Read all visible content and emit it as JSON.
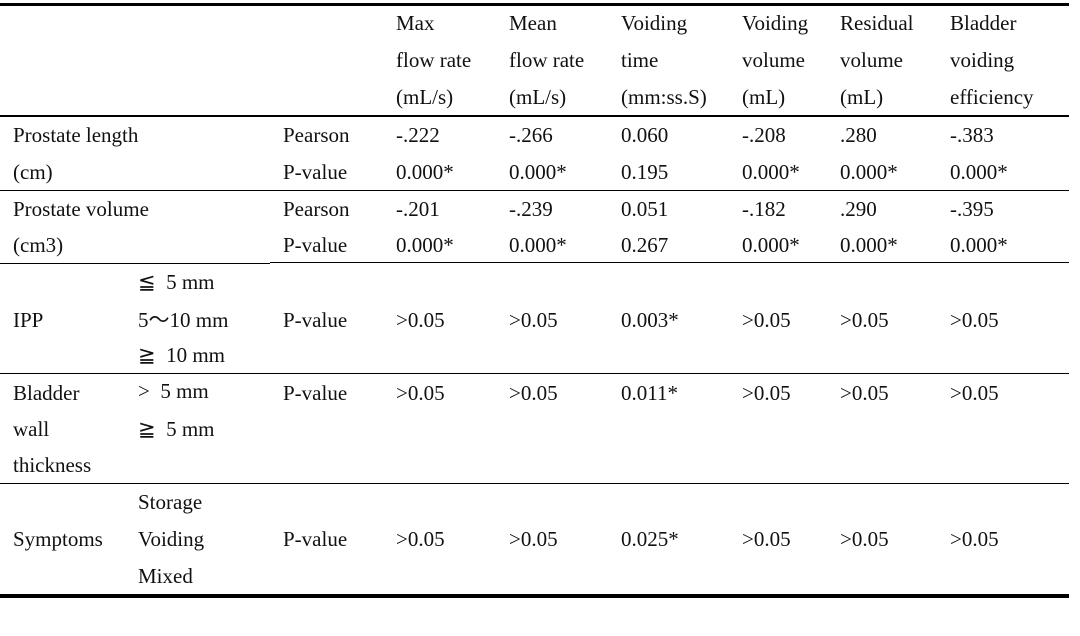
{
  "header": {
    "columns": [
      [
        "Max",
        "flow rate",
        "(mL/s)"
      ],
      [
        "Mean",
        "flow rate",
        "(mL/s)"
      ],
      [
        "Voiding",
        "time",
        "(mm:ss.S)"
      ],
      [
        "Voiding",
        "volume",
        "(mL)"
      ],
      [
        "Residual",
        "volume",
        "(mL)"
      ],
      [
        "Bladder",
        "voiding",
        "efficiency"
      ]
    ]
  },
  "rows": [
    {
      "label": [
        "Prostate length",
        "(cm)"
      ],
      "sub": [],
      "stats": [
        {
          "name": "Pearson",
          "values": [
            "-.222",
            "-.266",
            "0.060",
            "-.208",
            ".280",
            "-.383"
          ]
        },
        {
          "name": "P-value",
          "values": [
            "0.000*",
            "0.000*",
            "0.195",
            "0.000*",
            "0.000*",
            "0.000*"
          ]
        }
      ]
    },
    {
      "label": [
        "Prostate volume",
        "(cm3)"
      ],
      "sub": [],
      "stats": [
        {
          "name": "Pearson",
          "values": [
            "-.201",
            "-.239",
            "0.051",
            "-.182",
            ".290",
            "-.395"
          ]
        },
        {
          "name": "P-value",
          "values": [
            "0.000*",
            "0.000*",
            "0.267",
            "0.000*",
            "0.000*",
            "0.000*"
          ]
        }
      ]
    },
    {
      "label": [
        "IPP"
      ],
      "sub": [
        "≦  5 mm",
        "5～10 mm",
        "≧  10 mm"
      ],
      "stats": [
        {
          "name": "P-value",
          "values": [
            ">0.05",
            ">0.05",
            "0.003*",
            ">0.05",
            ">0.05",
            ">0.05"
          ]
        }
      ]
    },
    {
      "label": [
        "Bladder",
        "wall",
        "thickness"
      ],
      "sub": [
        ">  5 mm",
        "≧  5 mm"
      ],
      "stats": [
        {
          "name": "P-value",
          "values": [
            ">0.05",
            ">0.05",
            "0.011*",
            ">0.05",
            ">0.05",
            ">0.05"
          ]
        }
      ]
    },
    {
      "label": [
        "Symptoms"
      ],
      "sub": [
        "Storage",
        "Voiding",
        "Mixed"
      ],
      "stats": [
        {
          "name": "P-value",
          "values": [
            ">0.05",
            ">0.05",
            "0.025*",
            ">0.05",
            ">0.05",
            ">0.05"
          ]
        }
      ]
    }
  ]
}
